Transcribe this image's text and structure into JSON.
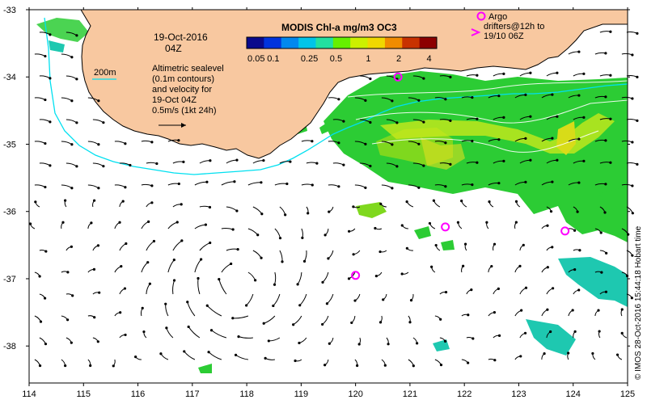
{
  "map": {
    "timestamp": "19-Oct-2016",
    "timestamp_hour": "04Z",
    "sealevel_note": [
      "Altimetric sealevel",
      "(0.1m contours)",
      "and velocity for",
      "19-Oct 04Z",
      "0.5m/s (1kt 24h)"
    ],
    "isobath_label": "200m",
    "argo_label": [
      "Argo",
      "drifters@12h to",
      "19/10 06Z"
    ],
    "credit": "© IMOS 28-Oct-2016 15:44:18 Hobart time",
    "colorbar": {
      "title": "MODIS Chl-a mg/m3 OC3",
      "ticks": [
        "0.05",
        "0.1",
        "0.25",
        "0.5",
        "1",
        "2",
        "4"
      ],
      "colors": [
        "#0a0a8c",
        "#0033dd",
        "#0088ee",
        "#00c4e8",
        "#22e0a0",
        "#66f000",
        "#ccf000",
        "#f0d800",
        "#f08c00",
        "#c83200",
        "#8c0000"
      ]
    },
    "axes": {
      "lon_range": [
        114,
        125
      ],
      "lat_range": [
        -38.55,
        -33.0
      ],
      "x_ticks": [
        "114",
        "115",
        "116",
        "117",
        "118",
        "119",
        "120",
        "121",
        "122",
        "123",
        "124",
        "125"
      ],
      "y_ticks": [
        "-33",
        "-34",
        "-35",
        "-36",
        "-37",
        "-38"
      ]
    },
    "colors": {
      "land": "#f8c8a0",
      "coast": "#000000",
      "isobath": "#00e0f0",
      "chl_green": "#2ccc34",
      "chl_yellow": "#c8e81c",
      "argo": "#ff00ff",
      "arrow": "#000000"
    },
    "argo_floats": [
      {
        "lon": 120.0,
        "lat": -36.95
      },
      {
        "lon": 121.65,
        "lat": -36.23
      },
      {
        "lon": 123.85,
        "lat": -36.29
      },
      {
        "lon": 120.78,
        "lat": -34.0
      }
    ]
  }
}
